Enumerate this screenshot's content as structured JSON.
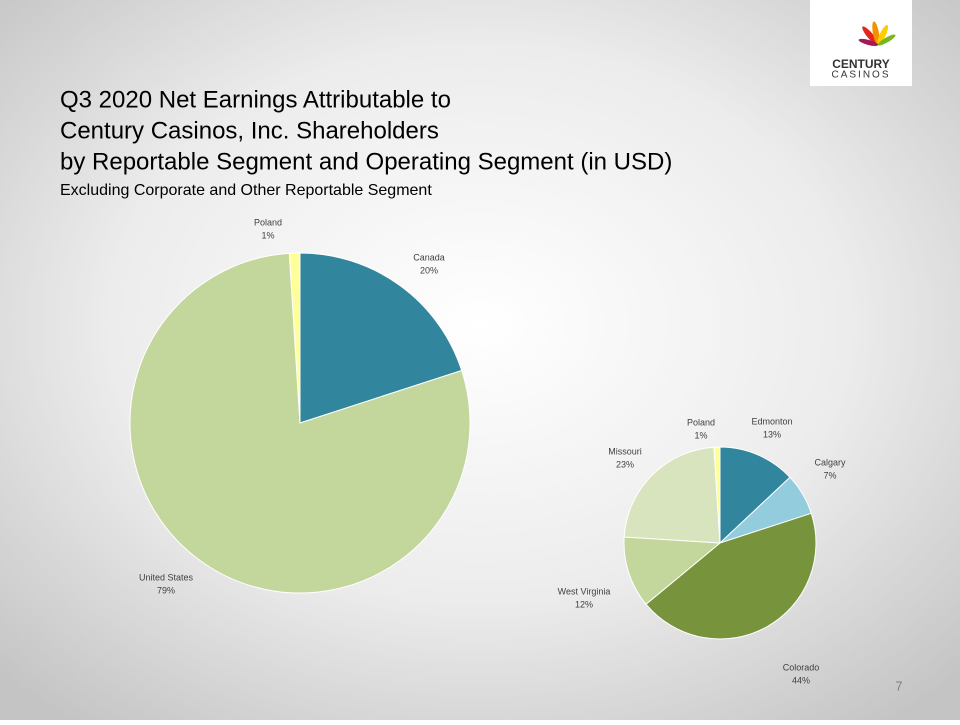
{
  "slide": {
    "title_lines": [
      "Q3 2020 Net Earnings Attributable to",
      "Century Casinos, Inc. Shareholders",
      "by Reportable Segment and Operating Segment (in USD)"
    ],
    "subtitle": "Excluding Corporate and Other Reportable Segment",
    "logo": [
      "CENTURY",
      "CASINOS"
    ],
    "page_number": "7"
  },
  "chart_data": [
    {
      "type": "pie",
      "categories": [
        "Canada",
        "United States",
        "Poland"
      ],
      "values": [
        20,
        79,
        1
      ],
      "value_labels": [
        "20%",
        "79%",
        "1%"
      ],
      "colors": [
        "#31859c",
        "#c3d69b",
        "#ffff99"
      ]
    },
    {
      "type": "pie",
      "categories": [
        "Edmonton",
        "Calgary",
        "Colorado",
        "West Virginia",
        "Missouri",
        "Poland"
      ],
      "values": [
        13,
        7,
        44,
        12,
        23,
        1
      ],
      "value_labels": [
        "13%",
        "7%",
        "44%",
        "12%",
        "23%",
        "1%"
      ],
      "colors": [
        "#31859c",
        "#93cddd",
        "#77933c",
        "#c3d69b",
        "#d7e4bd",
        "#ffff99"
      ]
    }
  ]
}
